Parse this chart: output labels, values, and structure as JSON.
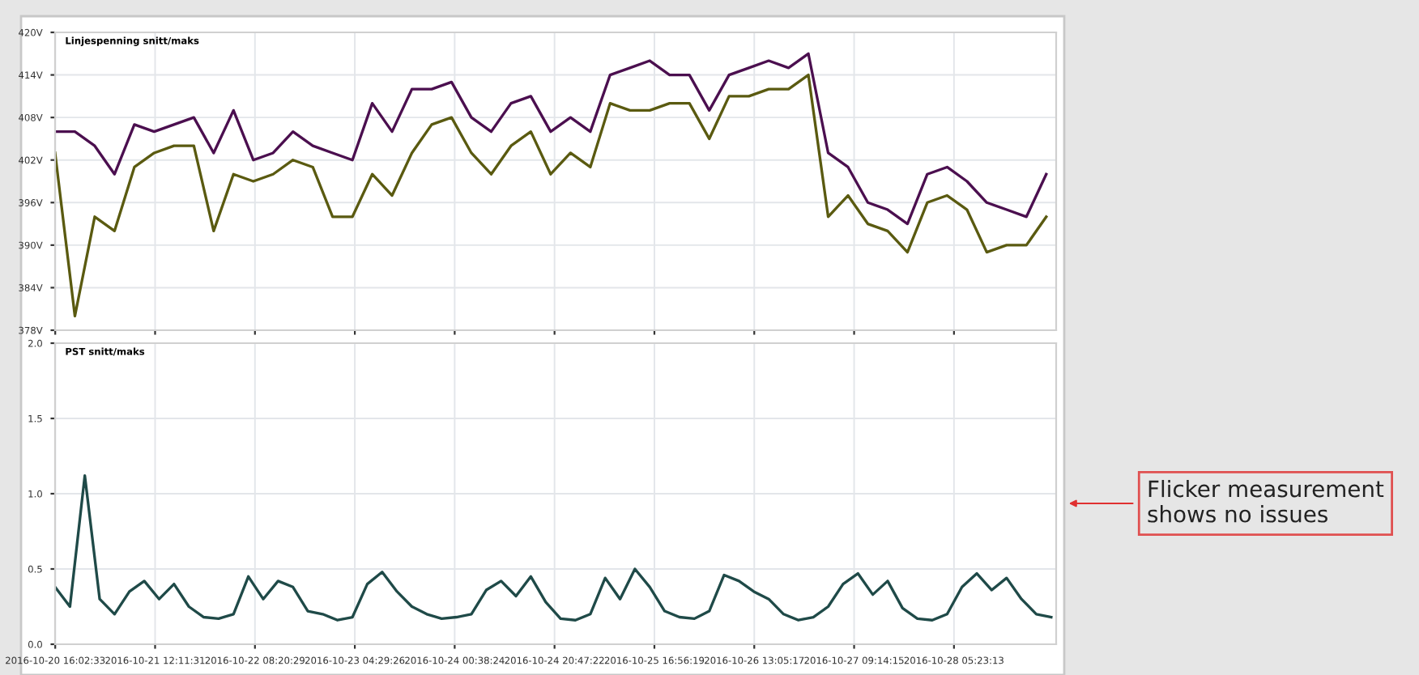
{
  "chart_data": [
    {
      "type": "line",
      "title": "Linjespenning snitt/maks",
      "tick_labels": "y",
      "grid": true,
      "legend": false,
      "marker": "none",
      "line_style": "solid",
      "x": [
        "2016-10-20T16:00",
        "2016-10-20T20:00",
        "2016-10-21T00:00",
        "2016-10-21T04:00",
        "2016-10-21T08:00",
        "2016-10-21T12:00",
        "2016-10-21T16:00",
        "2016-10-21T20:00",
        "2016-10-22T00:00",
        "2016-10-22T04:00",
        "2016-10-22T08:00",
        "2016-10-22T12:00",
        "2016-10-22T16:00",
        "2016-10-22T20:00",
        "2016-10-23T00:00",
        "2016-10-23T04:00",
        "2016-10-23T08:00",
        "2016-10-23T12:00",
        "2016-10-23T16:00",
        "2016-10-23T20:00",
        "2016-10-24T00:00",
        "2016-10-24T04:00",
        "2016-10-24T08:00",
        "2016-10-24T12:00",
        "2016-10-24T16:00",
        "2016-10-24T20:00",
        "2016-10-25T00:00",
        "2016-10-25T04:00",
        "2016-10-25T08:00",
        "2016-10-25T12:00",
        "2016-10-25T16:00",
        "2016-10-25T20:00",
        "2016-10-26T00:00",
        "2016-10-26T04:00",
        "2016-10-26T08:00",
        "2016-10-26T12:00",
        "2016-10-26T16:00",
        "2016-10-26T20:00",
        "2016-10-27T00:00",
        "2016-10-27T04:00",
        "2016-10-27T08:00",
        "2016-10-27T12:00",
        "2016-10-27T16:00",
        "2016-10-27T20:00",
        "2016-10-28T00:00",
        "2016-10-28T04:00",
        "2016-10-28T08:00",
        "2016-10-28T12:00",
        "2016-10-28T16:00",
        "2016-10-28T20:00",
        "2016-10-29T00:00"
      ],
      "series": [
        {
          "color": "#4b0f4f",
          "values": [
            406,
            406,
            404,
            400,
            407,
            406,
            407,
            408,
            403,
            409,
            402,
            403,
            406,
            404,
            403,
            402,
            410,
            406,
            412,
            412,
            413,
            408,
            406,
            410,
            411,
            406,
            408,
            406,
            414,
            415,
            416,
            414,
            414,
            409,
            414,
            415,
            416,
            415,
            417,
            403,
            401,
            396,
            395,
            393,
            400,
            401,
            399,
            396,
            395,
            394,
            400
          ]
        },
        {
          "color": "#5a5a10",
          "values": [
            403,
            380,
            394,
            392,
            401,
            403,
            404,
            404,
            392,
            400,
            399,
            400,
            402,
            401,
            394,
            394,
            400,
            397,
            403,
            407,
            408,
            403,
            400,
            404,
            406,
            400,
            403,
            401,
            410,
            409,
            409,
            410,
            410,
            405,
            411,
            411,
            412,
            412,
            414,
            394,
            397,
            393,
            392,
            389,
            396,
            397,
            395,
            389,
            390,
            390,
            394
          ]
        }
      ],
      "ylim": [
        378,
        420
      ],
      "yticks": [
        {
          "value": 378,
          "label": "378V"
        },
        {
          "value": 384,
          "label": "384V"
        },
        {
          "value": 390,
          "label": "390V"
        },
        {
          "value": 396,
          "label": "396V"
        },
        {
          "value": 402,
          "label": "402V"
        },
        {
          "value": 408,
          "label": "408V"
        },
        {
          "value": 414,
          "label": "414V"
        },
        {
          "value": 420,
          "label": "420V"
        }
      ],
      "xlim": [
        "2016-10-20T16:00",
        "2016-10-29T02:00"
      ],
      "xticks": [
        {
          "value": "2016-10-20T16:02",
          "label": null
        },
        {
          "value": "2016-10-21T12:11",
          "label": null
        },
        {
          "value": "2016-10-22T08:20",
          "label": null
        },
        {
          "value": "2016-10-23T04:29",
          "label": null
        },
        {
          "value": "2016-10-24T00:38",
          "label": null
        },
        {
          "value": "2016-10-24T20:47",
          "label": null
        },
        {
          "value": "2016-10-25T16:56",
          "label": null
        },
        {
          "value": "2016-10-26T13:05",
          "label": null
        },
        {
          "value": "2016-10-27T09:14",
          "label": null
        },
        {
          "value": "2016-10-28T05:23",
          "label": null
        }
      ]
    },
    {
      "type": "line",
      "title": "PST snitt/maks",
      "grid": true,
      "legend": false,
      "marker": "none",
      "line_style": "solid",
      "x": [
        "2016-10-20T16:00",
        "2016-10-20T19:00",
        "2016-10-20T22:00",
        "2016-10-21T01:00",
        "2016-10-21T04:00",
        "2016-10-21T07:00",
        "2016-10-21T10:00",
        "2016-10-21T13:00",
        "2016-10-21T16:00",
        "2016-10-21T19:00",
        "2016-10-21T22:00",
        "2016-10-22T01:00",
        "2016-10-22T04:00",
        "2016-10-22T07:00",
        "2016-10-22T10:00",
        "2016-10-22T13:00",
        "2016-10-22T16:00",
        "2016-10-22T19:00",
        "2016-10-22T22:00",
        "2016-10-23T01:00",
        "2016-10-23T04:00",
        "2016-10-23T07:00",
        "2016-10-23T10:00",
        "2016-10-23T13:00",
        "2016-10-23T16:00",
        "2016-10-23T19:00",
        "2016-10-23T22:00",
        "2016-10-24T01:00",
        "2016-10-24T04:00",
        "2016-10-24T07:00",
        "2016-10-24T10:00",
        "2016-10-24T13:00",
        "2016-10-24T16:00",
        "2016-10-24T19:00",
        "2016-10-24T22:00",
        "2016-10-25T01:00",
        "2016-10-25T04:00",
        "2016-10-25T07:00",
        "2016-10-25T10:00",
        "2016-10-25T13:00",
        "2016-10-25T16:00",
        "2016-10-25T19:00",
        "2016-10-25T22:00",
        "2016-10-26T01:00",
        "2016-10-26T04:00",
        "2016-10-26T07:00",
        "2016-10-26T10:00",
        "2016-10-26T13:00",
        "2016-10-26T16:00",
        "2016-10-26T19:00",
        "2016-10-26T22:00",
        "2016-10-27T01:00",
        "2016-10-27T04:00",
        "2016-10-27T07:00",
        "2016-10-27T10:00",
        "2016-10-27T13:00",
        "2016-10-27T16:00",
        "2016-10-27T19:00",
        "2016-10-27T22:00",
        "2016-10-28T01:00",
        "2016-10-28T04:00",
        "2016-10-28T07:00",
        "2016-10-28T10:00",
        "2016-10-28T13:00",
        "2016-10-28T16:00",
        "2016-10-28T19:00",
        "2016-10-28T22:00",
        "2016-10-29T01:00"
      ],
      "series": [
        {
          "color": "#1f4a48",
          "values": [
            0.38,
            0.25,
            1.12,
            0.3,
            0.2,
            0.35,
            0.42,
            0.3,
            0.4,
            0.25,
            0.18,
            0.17,
            0.2,
            0.45,
            0.3,
            0.42,
            0.38,
            0.22,
            0.2,
            0.16,
            0.18,
            0.4,
            0.48,
            0.35,
            0.25,
            0.2,
            0.17,
            0.18,
            0.2,
            0.36,
            0.42,
            0.32,
            0.45,
            0.28,
            0.17,
            0.16,
            0.2,
            0.44,
            0.3,
            0.5,
            0.38,
            0.22,
            0.18,
            0.17,
            0.22,
            0.46,
            0.42,
            0.35,
            0.3,
            0.2,
            0.16,
            0.18,
            0.25,
            0.4,
            0.47,
            0.33,
            0.42,
            0.24,
            0.17,
            0.16,
            0.2,
            0.38,
            0.47,
            0.36,
            0.44,
            0.3,
            0.2,
            0.18
          ]
        }
      ],
      "ylim": [
        0,
        2
      ],
      "yticks": [
        {
          "value": 0,
          "label": "0.0"
        },
        {
          "value": 0.5,
          "label": "0.5"
        },
        {
          "value": 1,
          "label": "1.0"
        },
        {
          "value": 1.5,
          "label": "1.5"
        },
        {
          "value": 2,
          "label": "2.0"
        }
      ],
      "xlim": [
        "2016-10-20T16:00",
        "2016-10-29T02:00"
      ],
      "xticks": [
        {
          "value": "2016-10-20T16:02",
          "label": "2016-10-20 16:02:33"
        },
        {
          "value": "2016-10-21T12:11",
          "label": "2016-10-21 12:11:31"
        },
        {
          "value": "2016-10-22T08:20",
          "label": "2016-10-22 08:20:29"
        },
        {
          "value": "2016-10-23T04:29",
          "label": "2016-10-23 04:29:26"
        },
        {
          "value": "2016-10-24T00:38",
          "label": "2016-10-24 00:38:24"
        },
        {
          "value": "2016-10-24T20:47",
          "label": "2016-10-24 20:47:22"
        },
        {
          "value": "2016-10-25T16:56",
          "label": "2016-10-25 16:56:19"
        },
        {
          "value": "2016-10-26T13:05",
          "label": "2016-10-26 13:05:17"
        },
        {
          "value": "2016-10-27T09:14",
          "label": "2016-10-27 09:14:15"
        },
        {
          "value": "2016-10-28T05:23",
          "label": "2016-10-28 05:23:13"
        }
      ],
      "annotations": [
        "Flicker measurement\nshows no issues"
      ]
    }
  ]
}
